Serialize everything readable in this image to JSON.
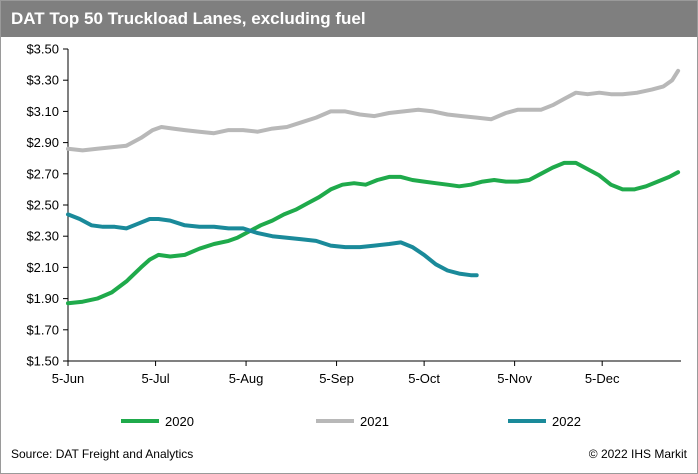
{
  "title": "DAT Top 50 Truckload Lanes, excluding fuel",
  "footer": {
    "source": "Source: DAT Freight and Analytics",
    "copyright": "© 2022 IHS Markit"
  },
  "chart_data": {
    "type": "line",
    "title": "DAT Top 50 Truckload Lanes, excluding fuel",
    "xlabel": "",
    "ylabel": "",
    "x_ticks": [
      "5-Jun",
      "5-Jul",
      "5-Aug",
      "5-Sep",
      "5-Oct",
      "5-Nov",
      "5-Dec"
    ],
    "x_range_days": [
      0,
      210
    ],
    "y_ticks": [
      "$1.50",
      "$1.70",
      "$1.90",
      "$2.10",
      "$2.30",
      "$2.50",
      "$2.70",
      "$2.90",
      "$3.10",
      "$3.30",
      "$3.50"
    ],
    "ylim": [
      1.5,
      3.5
    ],
    "grid": false,
    "legend_position": "bottom",
    "series": [
      {
        "name": "2020",
        "color": "#1faa4b",
        "points": [
          [
            0,
            1.87
          ],
          [
            5,
            1.88
          ],
          [
            10,
            1.9
          ],
          [
            15,
            1.94
          ],
          [
            20,
            2.01
          ],
          [
            25,
            2.1
          ],
          [
            28,
            2.15
          ],
          [
            31,
            2.18
          ],
          [
            35,
            2.17
          ],
          [
            40,
            2.18
          ],
          [
            45,
            2.22
          ],
          [
            50,
            2.25
          ],
          [
            55,
            2.27
          ],
          [
            58,
            2.29
          ],
          [
            62,
            2.33
          ],
          [
            66,
            2.37
          ],
          [
            70,
            2.4
          ],
          [
            74,
            2.44
          ],
          [
            78,
            2.47
          ],
          [
            82,
            2.51
          ],
          [
            86,
            2.55
          ],
          [
            90,
            2.6
          ],
          [
            94,
            2.63
          ],
          [
            98,
            2.64
          ],
          [
            102,
            2.63
          ],
          [
            106,
            2.66
          ],
          [
            110,
            2.68
          ],
          [
            114,
            2.68
          ],
          [
            118,
            2.66
          ],
          [
            122,
            2.65
          ],
          [
            126,
            2.64
          ],
          [
            130,
            2.63
          ],
          [
            134,
            2.62
          ],
          [
            138,
            2.63
          ],
          [
            142,
            2.65
          ],
          [
            146,
            2.66
          ],
          [
            150,
            2.65
          ],
          [
            154,
            2.65
          ],
          [
            158,
            2.66
          ],
          [
            162,
            2.7
          ],
          [
            166,
            2.74
          ],
          [
            170,
            2.77
          ],
          [
            174,
            2.77
          ],
          [
            178,
            2.73
          ],
          [
            182,
            2.69
          ],
          [
            186,
            2.63
          ],
          [
            190,
            2.6
          ],
          [
            194,
            2.6
          ],
          [
            198,
            2.62
          ],
          [
            202,
            2.65
          ],
          [
            206,
            2.68
          ],
          [
            209,
            2.71
          ]
        ]
      },
      {
        "name": "2021",
        "color": "#b8b8b8",
        "points": [
          [
            0,
            2.86
          ],
          [
            5,
            2.85
          ],
          [
            10,
            2.86
          ],
          [
            15,
            2.87
          ],
          [
            20,
            2.88
          ],
          [
            25,
            2.93
          ],
          [
            29,
            2.98
          ],
          [
            32,
            3.0
          ],
          [
            36,
            2.99
          ],
          [
            40,
            2.98
          ],
          [
            45,
            2.97
          ],
          [
            50,
            2.96
          ],
          [
            55,
            2.98
          ],
          [
            60,
            2.98
          ],
          [
            65,
            2.97
          ],
          [
            70,
            2.99
          ],
          [
            75,
            3.0
          ],
          [
            80,
            3.03
          ],
          [
            85,
            3.06
          ],
          [
            90,
            3.1
          ],
          [
            95,
            3.1
          ],
          [
            100,
            3.08
          ],
          [
            105,
            3.07
          ],
          [
            110,
            3.09
          ],
          [
            115,
            3.1
          ],
          [
            120,
            3.11
          ],
          [
            125,
            3.1
          ],
          [
            130,
            3.08
          ],
          [
            135,
            3.07
          ],
          [
            140,
            3.06
          ],
          [
            145,
            3.05
          ],
          [
            150,
            3.09
          ],
          [
            154,
            3.11
          ],
          [
            158,
            3.11
          ],
          [
            162,
            3.11
          ],
          [
            166,
            3.14
          ],
          [
            170,
            3.18
          ],
          [
            174,
            3.22
          ],
          [
            178,
            3.21
          ],
          [
            182,
            3.22
          ],
          [
            186,
            3.21
          ],
          [
            190,
            3.21
          ],
          [
            195,
            3.22
          ],
          [
            200,
            3.24
          ],
          [
            204,
            3.26
          ],
          [
            207,
            3.3
          ],
          [
            209,
            3.36
          ]
        ]
      },
      {
        "name": "2022",
        "color": "#1a8a9a",
        "points": [
          [
            0,
            2.44
          ],
          [
            4,
            2.41
          ],
          [
            8,
            2.37
          ],
          [
            12,
            2.36
          ],
          [
            16,
            2.36
          ],
          [
            20,
            2.35
          ],
          [
            24,
            2.38
          ],
          [
            28,
            2.41
          ],
          [
            31,
            2.41
          ],
          [
            35,
            2.4
          ],
          [
            40,
            2.37
          ],
          [
            45,
            2.36
          ],
          [
            50,
            2.36
          ],
          [
            55,
            2.35
          ],
          [
            60,
            2.35
          ],
          [
            65,
            2.32
          ],
          [
            70,
            2.3
          ],
          [
            75,
            2.29
          ],
          [
            80,
            2.28
          ],
          [
            85,
            2.27
          ],
          [
            90,
            2.24
          ],
          [
            95,
            2.23
          ],
          [
            100,
            2.23
          ],
          [
            105,
            2.24
          ],
          [
            110,
            2.25
          ],
          [
            114,
            2.26
          ],
          [
            118,
            2.23
          ],
          [
            122,
            2.18
          ],
          [
            126,
            2.12
          ],
          [
            130,
            2.08
          ],
          [
            134,
            2.06
          ],
          [
            138,
            2.05
          ],
          [
            140,
            2.05
          ]
        ]
      }
    ]
  }
}
